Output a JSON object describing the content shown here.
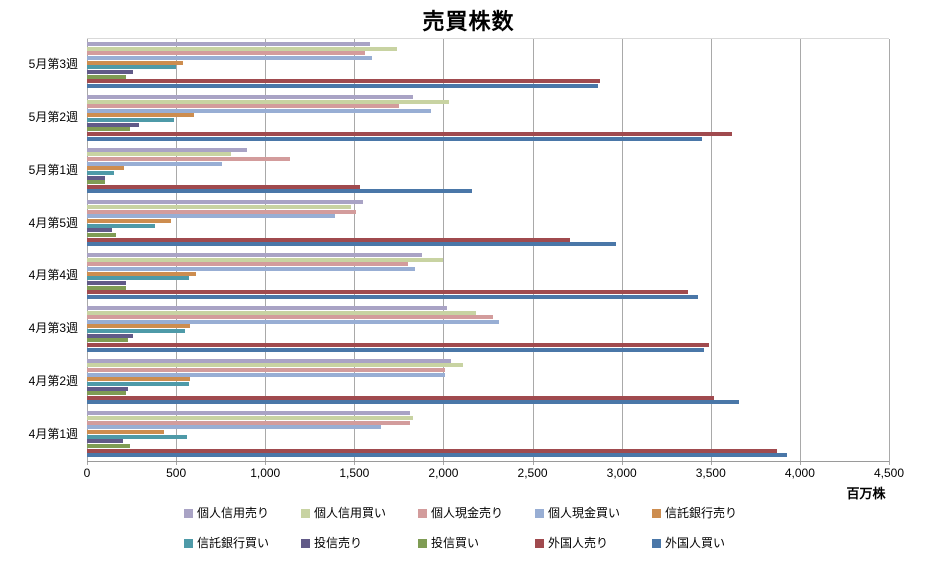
{
  "title": "売買株数",
  "axis": {
    "unit_label": "百万株",
    "x_ticks": [
      "0",
      "500",
      "1,000",
      "1,500",
      "2,000",
      "2,500",
      "3,000",
      "3,500",
      "4,000",
      "4,500"
    ]
  },
  "colors": {
    "gridline": "#8c8c8c",
    "plot_border": "#d9d9d9",
    "background": "#ffffff",
    "text": "#000000"
  },
  "chart_data": {
    "type": "bar",
    "orientation": "horizontal",
    "title": "売買株数",
    "xlabel": "百万株",
    "ylabel": "",
    "xlim": [
      0,
      4500
    ],
    "x_tick_interval": 500,
    "grid": true,
    "legend_position": "bottom",
    "categories": [
      "5月第3週",
      "5月第2週",
      "5月第1週",
      "4月第5週",
      "4月第4週",
      "4月第3週",
      "4月第2週",
      "4月第1週"
    ],
    "series": [
      {
        "name": "個人信用売り",
        "color": "#a9a3c5",
        "values": [
          1590,
          1830,
          900,
          1550,
          1880,
          2020,
          2040,
          1810
        ]
      },
      {
        "name": "個人信用買い",
        "color": "#c8d3a2",
        "values": [
          1740,
          2030,
          810,
          1480,
          2000,
          2180,
          2110,
          1830
        ]
      },
      {
        "name": "個人現金売り",
        "color": "#d39c9c",
        "values": [
          1560,
          1750,
          1140,
          1510,
          1800,
          2280,
          2010,
          1810
        ]
      },
      {
        "name": "個人現金買い",
        "color": "#98aed4",
        "values": [
          1600,
          1930,
          760,
          1390,
          1840,
          2310,
          2010,
          1650
        ]
      },
      {
        "name": "信託銀行売り",
        "color": "#cd8d4f",
        "values": [
          540,
          600,
          210,
          470,
          610,
          580,
          580,
          430
        ]
      },
      {
        "name": "信託銀行買い",
        "color": "#4e9aa8",
        "values": [
          500,
          490,
          150,
          380,
          570,
          550,
          570,
          560
        ]
      },
      {
        "name": "投信売り",
        "color": "#615a88",
        "values": [
          260,
          290,
          100,
          140,
          220,
          260,
          230,
          200
        ]
      },
      {
        "name": "投信買い",
        "color": "#7f9c54",
        "values": [
          220,
          240,
          100,
          160,
          220,
          230,
          220,
          240
        ]
      },
      {
        "name": "外国人売り",
        "color": "#a04a4e",
        "values": [
          2880,
          3620,
          1530,
          2710,
          3370,
          3490,
          3520,
          3870
        ]
      },
      {
        "name": "外国人買い",
        "color": "#4a77a8",
        "values": [
          2870,
          3450,
          2160,
          2970,
          3430,
          3460,
          3660,
          3930
        ]
      }
    ]
  }
}
